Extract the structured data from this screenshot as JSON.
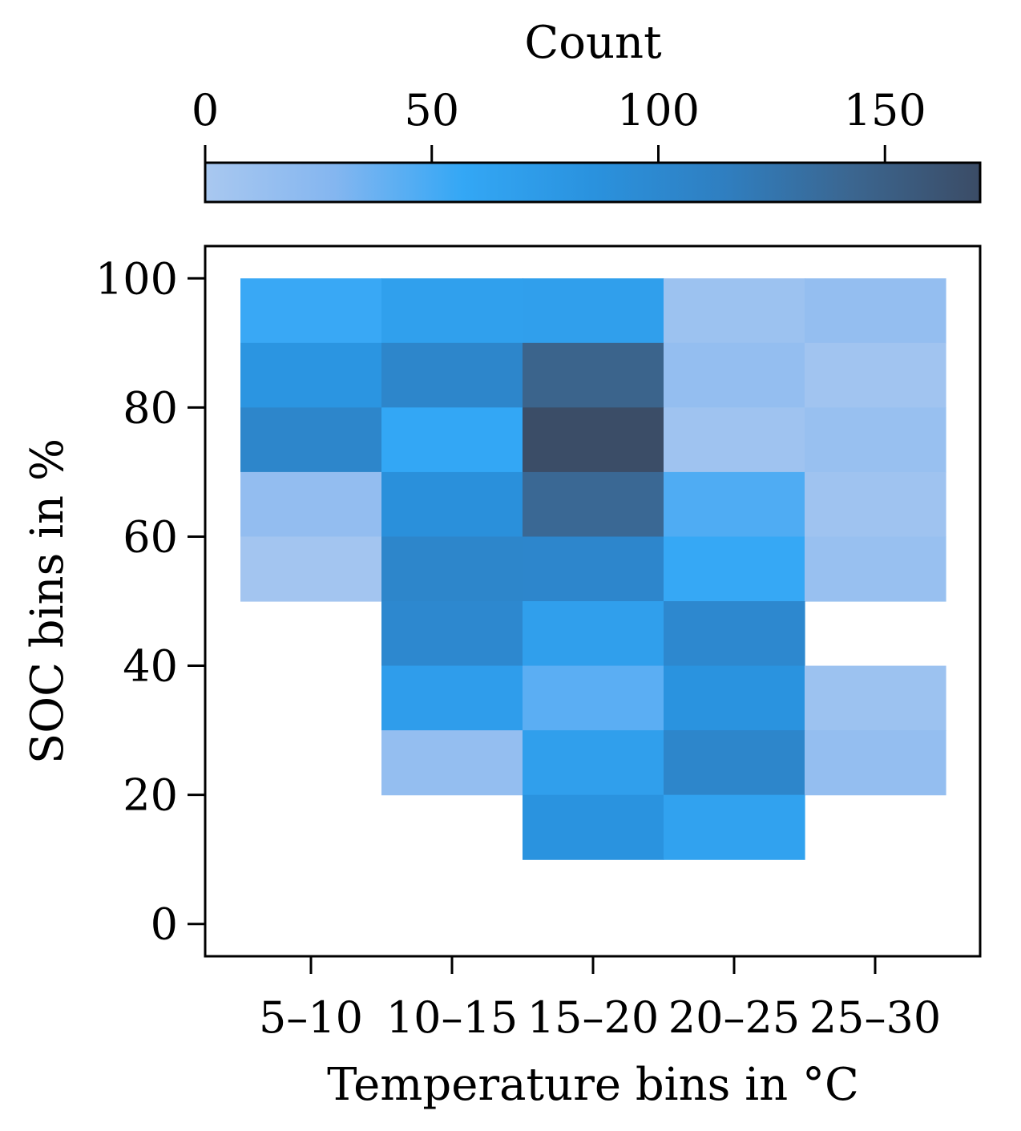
{
  "chart_data": {
    "type": "heatmap",
    "title": "",
    "xlabel": "Temperature bins in °C",
    "ylabel": "SOC bins in %",
    "categories": [
      "5–10",
      "10–15",
      "15–20",
      "20–25",
      "25–30"
    ],
    "y_bins": [
      [
        90,
        100
      ],
      [
        80,
        90
      ],
      [
        70,
        80
      ],
      [
        60,
        70
      ],
      [
        50,
        60
      ],
      [
        40,
        50
      ],
      [
        30,
        40
      ],
      [
        20,
        30
      ],
      [
        10,
        20
      ]
    ],
    "values": [
      [
        55,
        67,
        68,
        10,
        16
      ],
      [
        82,
        104,
        145,
        16,
        6
      ],
      [
        104,
        57,
        170,
        8,
        13
      ],
      [
        17,
        88,
        140,
        47,
        8
      ],
      [
        5,
        104,
        103,
        56,
        13
      ],
      [
        null,
        100,
        68,
        100,
        null
      ],
      [
        null,
        70,
        43,
        84,
        10
      ],
      [
        null,
        16,
        68,
        104,
        16
      ],
      [
        null,
        null,
        84,
        64,
        null
      ]
    ],
    "ylim": [
      -5,
      105
    ],
    "yticks": [
      "0",
      "20",
      "40",
      "60",
      "80",
      "100"
    ],
    "grid": false,
    "colorbar": {
      "label": "Count",
      "range": [
        0,
        171
      ],
      "ticks": [
        "0",
        "50",
        "100",
        "150"
      ],
      "colors": [
        "#a9c8f0",
        "#84b6f0",
        "#33a7f5",
        "#2a92de",
        "#2f7fc1",
        "#3b6690",
        "#3b4c66"
      ],
      "placement": "top"
    }
  }
}
